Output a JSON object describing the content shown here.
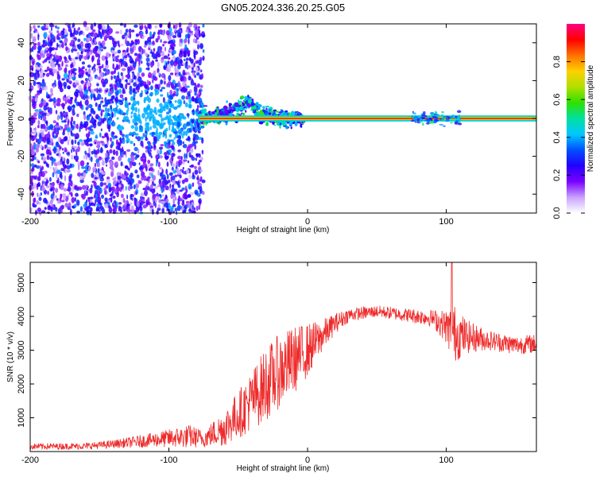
{
  "title": "GN05.2024.336.20.25.G05",
  "chart_data": [
    {
      "type": "heatmap",
      "xlabel": "Height of straight line (km)",
      "ylabel": "Frequency (Hz)",
      "xlim": [
        -200,
        165
      ],
      "ylim": [
        -50,
        50
      ],
      "xticks": [
        -200,
        -100,
        0,
        100
      ],
      "yticks": [
        -40,
        -20,
        0,
        20,
        40
      ],
      "grid": false,
      "colorbar": {
        "label": "Normalized spectral amplitude",
        "range": [
          0,
          1
        ],
        "ticks": [
          "0.0",
          "0.2",
          "0.4",
          "0.6",
          "0.8"
        ],
        "colors": [
          "#ffffff",
          "#c9a2ff",
          "#7a00ff",
          "#2400ff",
          "#0050ff",
          "#00c8ff",
          "#00e0a0",
          "#30e000",
          "#b0e000",
          "#ffd000",
          "#ff7000",
          "#ff0000",
          "#ff0080"
        ]
      },
      "features": {
        "carrier_line": {
          "x_start": -78,
          "x_end": 165,
          "frequency_hz": 0,
          "amplitude": 1.0
        },
        "noise_region_x": [
          -200,
          -75
        ],
        "noise_frequency_span_hz": [
          -50,
          50
        ],
        "transition_ridge": [
          {
            "x": -75,
            "frequency_hz": 0
          },
          {
            "x": -60,
            "frequency_hz": 2
          },
          {
            "x": -48,
            "frequency_hz": 6
          },
          {
            "x": -42,
            "frequency_hz": 9
          },
          {
            "x": -35,
            "frequency_hz": 3
          },
          {
            "x": -20,
            "frequency_hz": 0
          }
        ],
        "secondary_burst_x": [
          75,
          110
        ]
      }
    },
    {
      "type": "line",
      "xlabel": "Height of straight line (km)",
      "ylabel": "SNR (10 * v/v)",
      "xlim": [
        -200,
        165
      ],
      "ylim": [
        0,
        5600
      ],
      "xticks": [
        -200,
        -100,
        0,
        100
      ],
      "yticks": [
        1000,
        2000,
        3000,
        4000,
        5000
      ],
      "grid": false,
      "line_color": "#ee2a2a",
      "envelope": [
        {
          "x": -200,
          "mean": 150,
          "amp": 90
        },
        {
          "x": -160,
          "mean": 160,
          "amp": 100
        },
        {
          "x": -140,
          "mean": 220,
          "amp": 120
        },
        {
          "x": -110,
          "mean": 350,
          "amp": 220
        },
        {
          "x": -85,
          "mean": 450,
          "amp": 350
        },
        {
          "x": -75,
          "mean": 380,
          "amp": 250
        },
        {
          "x": -60,
          "mean": 700,
          "amp": 550
        },
        {
          "x": -45,
          "mean": 1300,
          "amp": 800
        },
        {
          "x": -30,
          "mean": 2000,
          "amp": 1100
        },
        {
          "x": -20,
          "mean": 2400,
          "amp": 1100
        },
        {
          "x": -10,
          "mean": 2700,
          "amp": 1000
        },
        {
          "x": 0,
          "mean": 3000,
          "amp": 800
        },
        {
          "x": 10,
          "mean": 3400,
          "amp": 500
        },
        {
          "x": 20,
          "mean": 3800,
          "amp": 300
        },
        {
          "x": 30,
          "mean": 4050,
          "amp": 200
        },
        {
          "x": 50,
          "mean": 4150,
          "amp": 180
        },
        {
          "x": 70,
          "mean": 4050,
          "amp": 200
        },
        {
          "x": 90,
          "mean": 3950,
          "amp": 250
        },
        {
          "x": 100,
          "mean": 3700,
          "amp": 500
        },
        {
          "x": 105,
          "mean": 3500,
          "amp": 900
        },
        {
          "x": 115,
          "mean": 3400,
          "amp": 500
        },
        {
          "x": 130,
          "mean": 3300,
          "amp": 300
        },
        {
          "x": 150,
          "mean": 3150,
          "amp": 280
        },
        {
          "x": 165,
          "mean": 3200,
          "amp": 280
        }
      ],
      "peak": {
        "x": 104,
        "y": 5600
      }
    }
  ]
}
